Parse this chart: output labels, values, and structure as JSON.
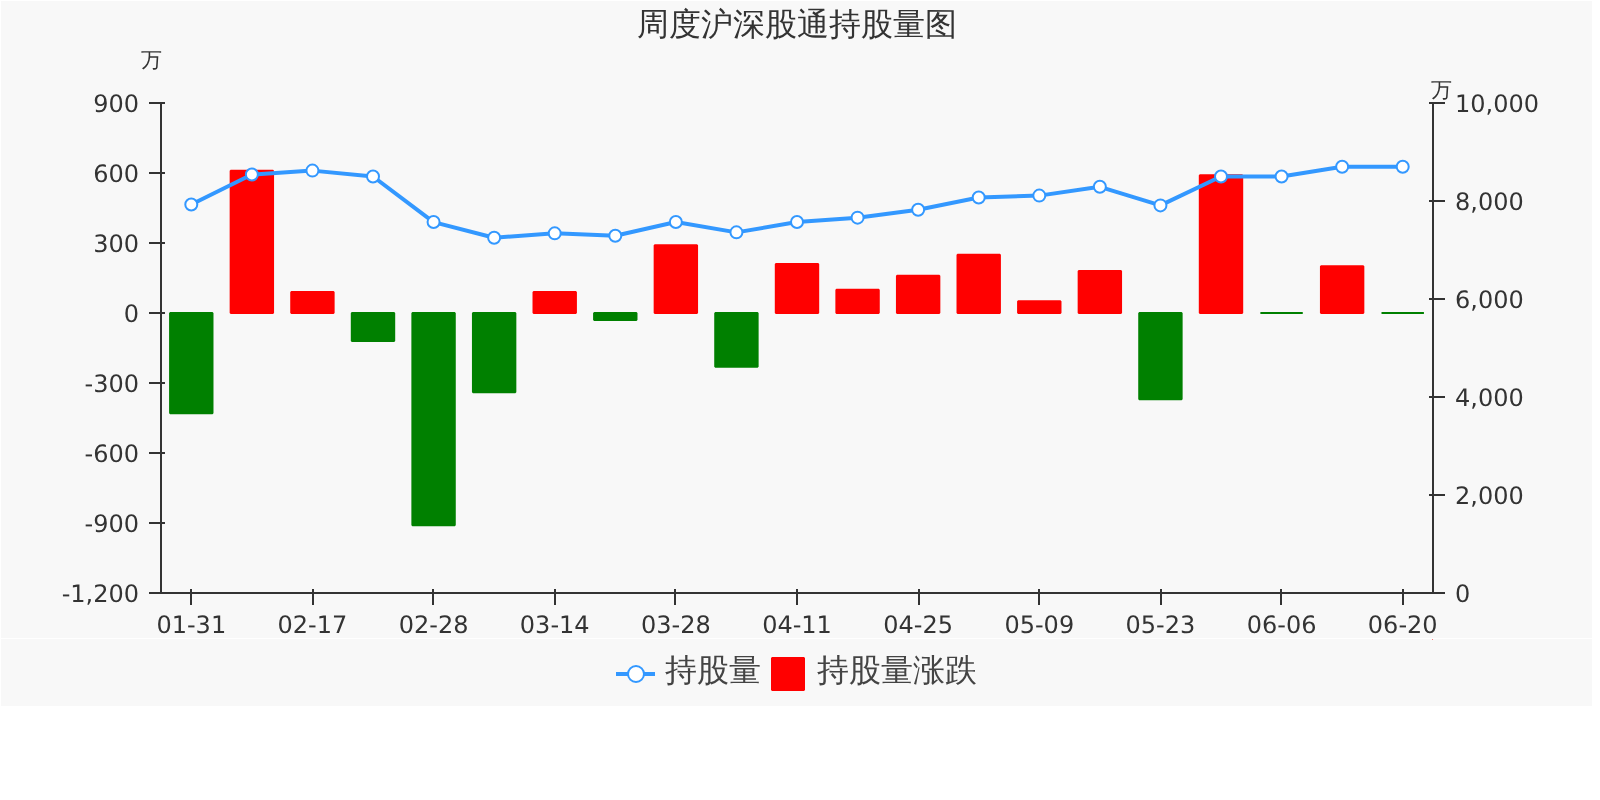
{
  "chart_data": {
    "type": "bar",
    "title": "周度沪深股通持股量图",
    "ylabel": "万",
    "y2label": "万",
    "categories": [
      "01-31",
      null,
      "02-17",
      null,
      "02-28",
      null,
      "03-14",
      null,
      "03-28",
      null,
      "04-11",
      null,
      "04-25",
      null,
      "05-09",
      null,
      "05-23",
      null,
      "06-06",
      null,
      "06-20"
    ],
    "series": [
      {
        "name": "持股量",
        "type": "line",
        "axis": "y2",
        "color": "#3398ff",
        "marker": "circle",
        "values": [
          7930,
          8540,
          8620,
          8500,
          7570,
          7250,
          7340,
          7290,
          7570,
          7360,
          7570,
          7660,
          7820,
          8070,
          8110,
          8290,
          7910,
          8500,
          8500,
          8700,
          8700
        ]
      },
      {
        "name": "持股量涨跌",
        "color": "#ff0000",
        "colors": [
          "#008000",
          "#ff0000",
          "#ff0000",
          "#008000",
          "#008000",
          "#008000",
          "#ff0000",
          "#008000",
          "#ff0000",
          "#008000",
          "#ff0000",
          "#ff0000",
          "#ff0000",
          "#ff0000",
          "#ff0000",
          "#ff0000",
          "#008000",
          "#ff0000",
          "#008000",
          "#ff0000",
          "#008000"
        ],
        "values": [
          -430,
          610,
          90,
          -120,
          -910,
          -340,
          90,
          -30,
          290,
          -230,
          210,
          100,
          160,
          250,
          50,
          180,
          -370,
          590,
          0,
          200,
          0
        ]
      }
    ],
    "ylim": [
      -1200,
      900
    ],
    "yticks": [
      {
        "value": -1200,
        "label": "-1,200"
      },
      -900,
      -600,
      -300,
      0,
      300,
      600,
      900
    ],
    "y2lim": [
      0,
      10000
    ],
    "y2ticks": [
      0,
      {
        "value": 2000,
        "label": "2,000"
      },
      {
        "value": 4000,
        "label": "4,000"
      },
      {
        "value": 6000,
        "label": "6,000"
      },
      {
        "value": 8000,
        "label": "8,000"
      },
      {
        "value": 10000,
        "label": "10,000"
      }
    ],
    "legend": "bottom",
    "grid": false
  }
}
